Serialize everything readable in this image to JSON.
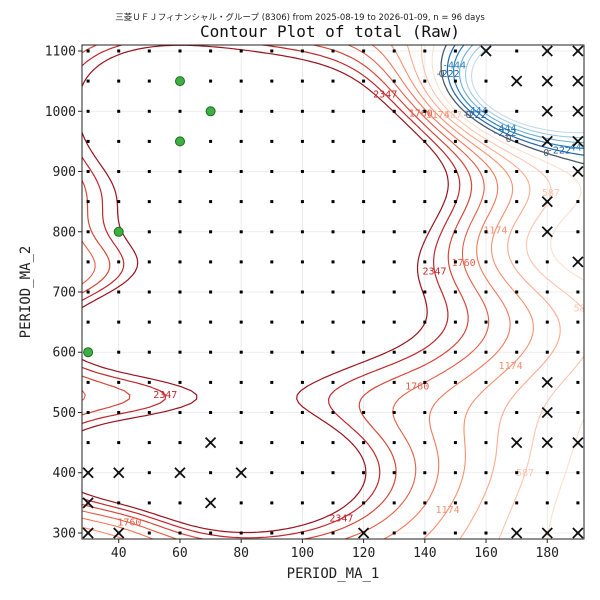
{
  "chart_data": {
    "type": "contour",
    "title": "Contour Plot of total (Raw)",
    "subtitle": "三菱ＵＦＪフィナンシャル・グループ (8306) from 2025-08-19 to 2026-01-09, n = 96 days",
    "xlabel": "PERIOD_MA_1",
    "ylabel": "PERIOD_MA_2",
    "xlim": [
      28,
      192
    ],
    "ylim": [
      290,
      1110
    ],
    "x_ticks": [
      40,
      60,
      80,
      100,
      120,
      140,
      160,
      180
    ],
    "y_ticks": [
      300,
      400,
      500,
      600,
      700,
      800,
      900,
      1000,
      1100
    ],
    "grid": true,
    "contour_level_labels": [
      "-444",
      "-222",
      "0",
      "587",
      "1174",
      "1760",
      "2347"
    ],
    "colors": {
      "negative": "#2166ac",
      "negative_light": "#92c5de",
      "zero": "#4d5a66",
      "positive_light": "#f4a582",
      "positive": "#d6604d",
      "positive_dark": "#b2182b",
      "best_marker": "#3cb043",
      "worst_marker": "#111111",
      "sample_marker": "#000000"
    },
    "grid_x_values": [
      30,
      40,
      50,
      60,
      70,
      80,
      90,
      100,
      110,
      120,
      130,
      140,
      150,
      160,
      170,
      180,
      190
    ],
    "grid_y_values": [
      300,
      350,
      400,
      450,
      500,
      550,
      600,
      650,
      700,
      750,
      800,
      850,
      900,
      950,
      1000,
      1050,
      1100
    ],
    "best_points": [
      [
        60,
        1050
      ],
      [
        70,
        1000
      ],
      [
        60,
        950
      ],
      [
        40,
        800
      ],
      [
        30,
        600
      ]
    ],
    "worst_points": [
      [
        160,
        1100
      ],
      [
        180,
        1100
      ],
      [
        190,
        1100
      ],
      [
        170,
        1050
      ],
      [
        180,
        1050
      ],
      [
        190,
        1050
      ],
      [
        180,
        1000
      ],
      [
        190,
        1000
      ],
      [
        180,
        950
      ],
      [
        190,
        950
      ],
      [
        190,
        900
      ],
      [
        180,
        850
      ],
      [
        180,
        800
      ],
      [
        190,
        750
      ],
      [
        180,
        550
      ],
      [
        180,
        500
      ],
      [
        170,
        450
      ],
      [
        180,
        450
      ],
      [
        190,
        450
      ],
      [
        30,
        400
      ],
      [
        40,
        400
      ],
      [
        60,
        400
      ],
      [
        80,
        400
      ],
      [
        30,
        350
      ],
      [
        70,
        350
      ],
      [
        120,
        300
      ],
      [
        30,
        300
      ],
      [
        40,
        300
      ],
      [
        170,
        300
      ],
      [
        180,
        300
      ],
      [
        190,
        300
      ],
      [
        70,
        450
      ]
    ]
  }
}
